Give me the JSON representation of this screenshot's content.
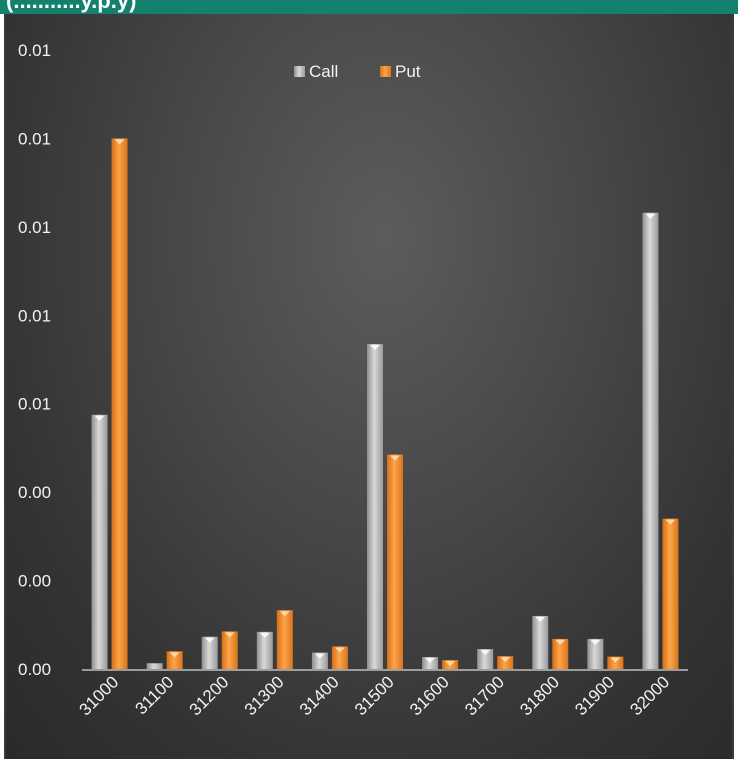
{
  "banner": {
    "text": "(...........y.p.y)",
    "color": "#14806e"
  },
  "chart_data": {
    "type": "bar",
    "title": "",
    "xlabel": "",
    "ylabel": "",
    "categories": [
      "31000",
      "31100",
      "31200",
      "31300",
      "31400",
      "31500",
      "31600",
      "31700",
      "31800",
      "31900",
      "32000"
    ],
    "series": [
      {
        "name": "Call",
        "color": "#bfbfbf",
        "values": [
          0.00575,
          0.00013,
          0.00073,
          0.00084,
          0.00037,
          0.00735,
          0.00027,
          0.00045,
          0.0012,
          0.00068,
          0.01032
        ]
      },
      {
        "name": "Put",
        "color": "#f08c2e",
        "values": [
          0.012,
          0.0004,
          0.00085,
          0.00133,
          0.00051,
          0.00485,
          0.0002,
          0.00029,
          0.00068,
          0.00028,
          0.0034
        ]
      }
    ],
    "ylim": [
      0,
      0.014
    ],
    "yticks": [
      0,
      0.002,
      0.004,
      0.006,
      0.008,
      0.01,
      0.012,
      0.014
    ],
    "ytick_labels": [
      "0.00",
      "0.00",
      "0.00",
      "0.01",
      "0.01",
      "0.01",
      "0.01",
      "0.01"
    ],
    "grid": false,
    "legend": {
      "position": "top-center",
      "entries": [
        "Call",
        "Put"
      ]
    }
  }
}
